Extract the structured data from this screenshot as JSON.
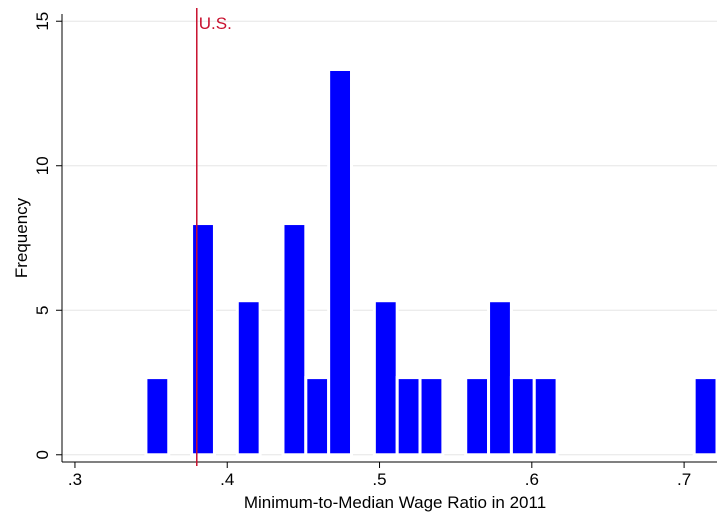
{
  "chart_data": {
    "type": "histogram",
    "x_label": "Minimum-to-Median Wage Ratio in 2011",
    "y_label": "Frequency",
    "bins": [
      0.3466,
      0.3616,
      0.3766,
      0.3916,
      0.4066,
      0.4216,
      0.4366,
      0.4516,
      0.4666,
      0.4816,
      0.4966,
      0.5116,
      0.5266,
      0.5416,
      0.5566,
      0.5716,
      0.5866,
      0.6016,
      0.6166,
      0.6316,
      0.6466,
      0.6616,
      0.6766,
      0.6916,
      0.7066,
      0.7216
    ],
    "counts": [
      2.67,
      0,
      8,
      0,
      5.33,
      0,
      8,
      2.67,
      13.33,
      0,
      5.33,
      2.67,
      2.67,
      0,
      2.67,
      5.33,
      2.67,
      2.67,
      0,
      0,
      0,
      0,
      0,
      0,
      2.67
    ],
    "color": "#0000ff",
    "xlim": [
      0.2915,
      0.7216
    ],
    "ylim": [
      -0.25,
      15.25
    ],
    "xticks": [
      {
        "value": 0.3,
        "label": ".3"
      },
      {
        "value": 0.4,
        "label": ".4"
      },
      {
        "value": 0.5,
        "label": ".5"
      },
      {
        "value": 0.6,
        "label": ".6"
      },
      {
        "value": 0.7,
        "label": ".7"
      }
    ],
    "yticks": [
      0,
      5,
      10,
      15
    ],
    "grid": true,
    "reference_line": {
      "x": 0.38,
      "label": "U.S.",
      "color": "#c8102e"
    }
  }
}
